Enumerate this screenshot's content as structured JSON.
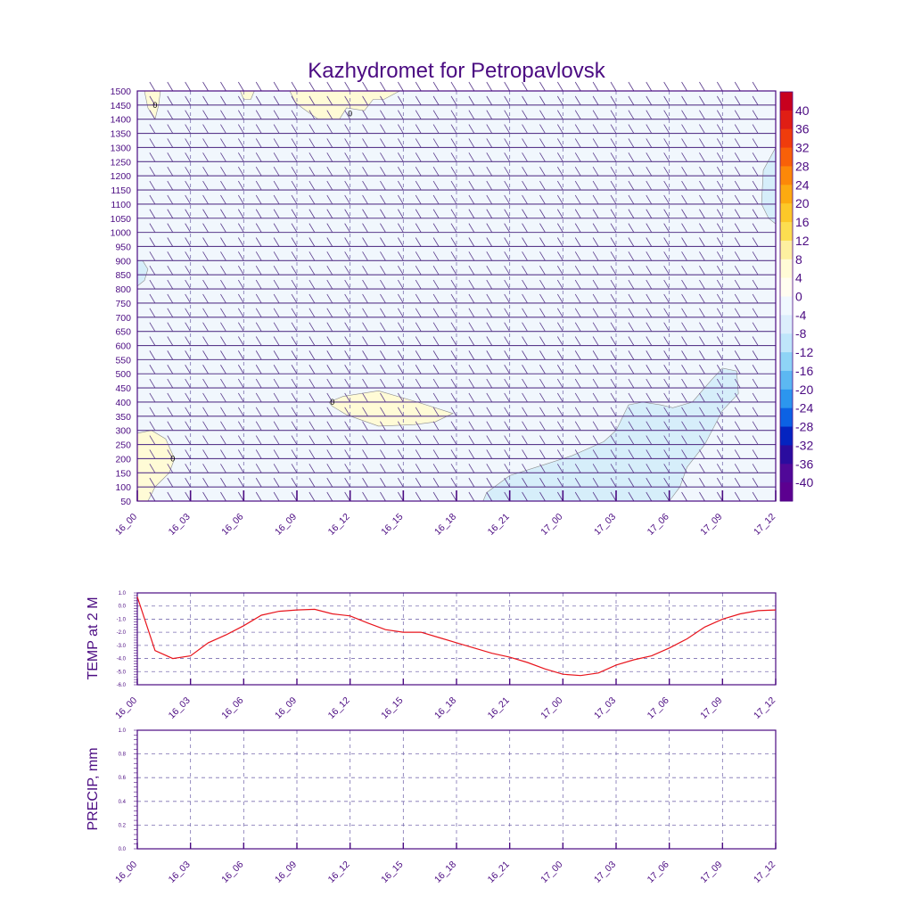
{
  "colors": {
    "frame": "#4b0b82",
    "grid": "#7b6fb0",
    "temp_line": "#e8141c",
    "zero_contour": "#000000"
  },
  "chart_data": [
    {
      "type": "heatmap",
      "title": "Kazhydromet for Petropavlovsk",
      "x_ticks": [
        "16_00",
        "16_03",
        "16_06",
        "16_09",
        "16_12",
        "16_15",
        "16_18",
        "16_21",
        "17_00",
        "17_03",
        "17_06",
        "17_09",
        "17_12"
      ],
      "y_ticks": [
        "50",
        "100",
        "150",
        "200",
        "250",
        "300",
        "350",
        "400",
        "450",
        "500",
        "550",
        "600",
        "650",
        "700",
        "750",
        "800",
        "850",
        "900",
        "950",
        "1000",
        "1050",
        "1100",
        "1150",
        "1200",
        "1250",
        "1300",
        "1350",
        "1400",
        "1450",
        "1500"
      ],
      "ylim": [
        50,
        1500
      ],
      "grid": true,
      "wind_barbs": true,
      "colorbar": {
        "labels": [
          "40",
          "36",
          "32",
          "28",
          "24",
          "20",
          "16",
          "12",
          "8",
          "4",
          "0",
          "-4",
          "-8",
          "-12",
          "-16",
          "-20",
          "-24",
          "-28",
          "-32",
          "-36",
          "-40"
        ],
        "colors": [
          "#c8001e",
          "#e01e14",
          "#f03c0c",
          "#f86008",
          "#fc8808",
          "#fcaa10",
          "#fcc828",
          "#fcde50",
          "#fef0a0",
          "#fffbd6",
          "#fffdf0",
          "#f0f8fe",
          "#dceefc",
          "#bfe6fa",
          "#8ed4f6",
          "#5cb8f2",
          "#2c96ee",
          "#0c62e4",
          "#0424c0",
          "#2a0c9e",
          "#500898",
          "#5c0090"
        ],
        "placement": "right"
      },
      "contour_labels": [
        {
          "text": "0",
          "x": "16_01",
          "y": 1450
        },
        {
          "text": "0",
          "x": "16_12",
          "y": 1420
        },
        {
          "text": "0",
          "x": "16_11",
          "y": 400
        },
        {
          "text": "0",
          "x": "16_02",
          "y": 200
        }
      ]
    },
    {
      "type": "line",
      "ylabel": "TEMP at 2 M",
      "ylim": [
        -6.0,
        1.0
      ],
      "y_ticks": [
        "1.0",
        "0.0",
        "-1.0",
        "-2.0",
        "-3.0",
        "-4.0",
        "-5.0",
        "-6.0"
      ],
      "x_ticks": [
        "16_00",
        "16_03",
        "16_06",
        "16_09",
        "16_12",
        "16_15",
        "16_18",
        "16_21",
        "17_00",
        "17_03",
        "17_06",
        "17_09",
        "17_12"
      ],
      "grid": true,
      "x_hours": [
        0,
        1,
        2,
        3,
        4,
        5,
        6,
        7,
        8,
        9,
        10,
        11,
        12,
        13,
        14,
        15,
        16,
        17,
        18,
        19,
        20,
        21,
        22,
        23,
        24,
        25,
        26,
        27,
        28,
        29,
        30,
        31,
        32,
        33,
        34,
        35,
        36
      ],
      "values": [
        0.7,
        -3.4,
        -4.0,
        -3.8,
        -2.8,
        -2.2,
        -1.5,
        -0.7,
        -0.4,
        -0.3,
        -0.25,
        -0.6,
        -0.75,
        -1.3,
        -1.8,
        -2.0,
        -2.0,
        -2.4,
        -2.8,
        -3.2,
        -3.6,
        -3.9,
        -4.3,
        -4.8,
        -5.2,
        -5.3,
        -5.1,
        -4.5,
        -4.1,
        -3.8,
        -3.2,
        -2.5,
        -1.6,
        -1.0,
        -0.6,
        -0.35,
        -0.3
      ]
    },
    {
      "type": "line",
      "ylabel": "PRECIP, mm",
      "ylim": [
        0.0,
        1.0
      ],
      "y_ticks": [
        "1.0",
        "0.8",
        "0.6",
        "0.4",
        "0.2",
        "0.0"
      ],
      "x_ticks": [
        "16_00",
        "16_03",
        "16_06",
        "16_09",
        "16_12",
        "16_15",
        "16_18",
        "16_21",
        "17_00",
        "17_03",
        "17_06",
        "17_09",
        "17_12"
      ],
      "grid": true,
      "values": []
    }
  ]
}
